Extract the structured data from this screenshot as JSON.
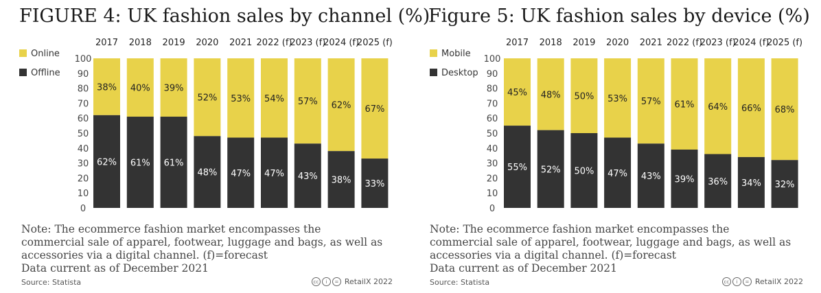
{
  "colors": {
    "accent": "#E8D24A",
    "dark": "#333333",
    "axis": "#444444"
  },
  "chart_data": [
    {
      "type": "bar",
      "stacked": true,
      "title": "FIGURE 4: UK fashion sales by channel (%)",
      "categories": [
        "2017",
        "2018",
        "2019",
        "2020",
        "2021",
        "2022 (f)",
        "2023 (f)",
        "2024 (f)",
        "2025 (f)"
      ],
      "series": [
        {
          "name": "Online",
          "values": [
            38,
            40,
            39,
            52,
            53,
            54,
            57,
            62,
            67
          ],
          "labels": [
            "38%",
            "40%",
            "39%",
            "52%",
            "53%",
            "54%",
            "57%",
            "62%",
            "67%"
          ]
        },
        {
          "name": "Offline",
          "values": [
            62,
            61,
            61,
            48,
            47,
            47,
            43,
            38,
            33
          ],
          "labels": [
            "62%",
            "61%",
            "61%",
            "48%",
            "47%",
            "47%",
            "43%",
            "38%",
            "33%"
          ]
        }
      ],
      "yticks": [
        "0",
        "10",
        "20",
        "30",
        "40",
        "50",
        "60",
        "70",
        "80",
        "90",
        "100"
      ],
      "ylim": [
        0,
        100
      ],
      "legend": [
        "Online",
        "Offline"
      ],
      "note_lines": [
        "Note: The ecommerce fashion market encompasses the",
        "commercial sale of apparel, footwear, luggage and bags, as well as",
        "accessories via a digital channel. (f)=forecast",
        "Data current as of December 2021"
      ],
      "source": "Source: Statista",
      "credit": "RetailX 2022"
    },
    {
      "type": "bar",
      "stacked": true,
      "title": "Figure 5: UK fashion sales by device (%)",
      "categories": [
        "2017",
        "2018",
        "2019",
        "2020",
        "2021",
        "2022 (f)",
        "2023 (f)",
        "2024 (f)",
        "2025 (f)"
      ],
      "series": [
        {
          "name": "Mobile",
          "values": [
            45,
            48,
            50,
            53,
            57,
            61,
            64,
            66,
            68
          ],
          "labels": [
            "45%",
            "48%",
            "50%",
            "53%",
            "57%",
            "61%",
            "64%",
            "66%",
            "68%"
          ]
        },
        {
          "name": "Desktop",
          "values": [
            55,
            52,
            50,
            47,
            43,
            39,
            36,
            34,
            32
          ],
          "labels": [
            "55%",
            "52%",
            "50%",
            "47%",
            "43%",
            "39%",
            "36%",
            "34%",
            "32%"
          ]
        }
      ],
      "yticks": [
        "0",
        "10",
        "20",
        "30",
        "40",
        "50",
        "60",
        "70",
        "80",
        "90",
        "100"
      ],
      "ylim": [
        0,
        100
      ],
      "legend": [
        "Mobile",
        "Desktop"
      ],
      "note_lines": [
        "Note: The ecommerce fashion market encompasses the",
        "commercial sale of apparel, footwear, luggage and bags, as well as",
        "accessories via a digital channel. (f)=forecast",
        "Data current as of December 2021"
      ],
      "source": "Source: Statista",
      "credit": "RetailX 2022"
    }
  ]
}
